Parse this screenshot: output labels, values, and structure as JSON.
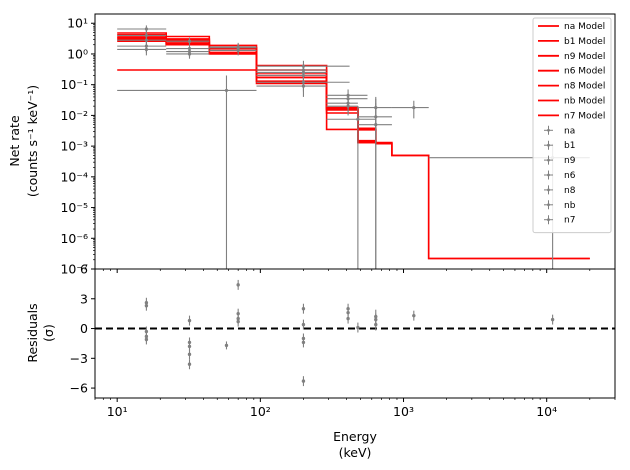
{
  "chart_data": [
    {
      "panel": "top",
      "type": "line",
      "xlabel": "Energy",
      "xlabel_unit": "(keV)",
      "ylabel": "Net rate",
      "ylabel_unit": "(counts s⁻¹ keV⁻¹)",
      "xscale": "log",
      "yscale": "log",
      "xlim": [
        7,
        30000
      ],
      "ylim": [
        1e-07,
        20
      ],
      "y_ticks": [
        {
          "value": 10,
          "label": "10¹"
        },
        {
          "value": 1,
          "label": "10⁰"
        },
        {
          "value": 0.1,
          "label": "10⁻¹"
        },
        {
          "value": 0.01,
          "label": "10⁻²"
        },
        {
          "value": 0.001,
          "label": "10⁻³"
        },
        {
          "value": 0.0001,
          "label": "10⁻⁴"
        },
        {
          "value": 1e-05,
          "label": "10⁻⁵"
        },
        {
          "value": 1e-06,
          "label": "10⁻⁶"
        },
        {
          "value": 1e-07,
          "label": "10⁻⁷"
        }
      ],
      "legend_position": "top-right",
      "model_color": "#ff0000",
      "data_color": "#808080",
      "models": [
        {
          "name": "na Model",
          "edges": [
            10,
            22,
            44,
            94,
            290,
            480,
            640,
            830,
            1500,
            20000
          ],
          "values": [
            3.6,
            2.8,
            1.6,
            0.42,
            0.018,
            0.0038,
            0.0012,
            0.0005,
            2.2e-07
          ]
        },
        {
          "name": "b1 Model",
          "edges": [
            10,
            22,
            44,
            94,
            290,
            480,
            640,
            830,
            1500,
            20000
          ],
          "values": [
            4.8,
            3.7,
            1.9,
            0.3,
            0.016,
            0.0035,
            0.0013,
            0.0005,
            2.2e-07
          ]
        },
        {
          "name": "n9 Model",
          "edges": [
            10,
            22,
            44,
            94,
            290,
            480,
            640,
            830
          ],
          "values": [
            4.2,
            3.1,
            1.5,
            0.24,
            0.015,
            0.0034,
            0.0012
          ]
        },
        {
          "name": "n6 Model",
          "edges": [
            10,
            22,
            44,
            94,
            290,
            480,
            640,
            830
          ],
          "values": [
            3.0,
            2.2,
            1.1,
            0.2,
            0.0035,
            0.0013,
            0.0012
          ]
        },
        {
          "name": "n8 Model",
          "edges": [
            10,
            22,
            44,
            94,
            290,
            480,
            640,
            830
          ],
          "values": [
            2.6,
            2.0,
            1.3,
            0.17,
            0.012,
            0.0015,
            0.0012
          ]
        },
        {
          "name": "nb Model",
          "edges": [
            10,
            22,
            44,
            94,
            290,
            480,
            640,
            830
          ],
          "values": [
            3.3,
            2.5,
            1.0,
            0.13,
            0.016,
            0.0014,
            0.0012
          ]
        },
        {
          "name": "n7 Model",
          "edges": [
            10,
            94,
            290,
            480,
            640,
            830
          ],
          "values": [
            0.3,
            0.11,
            0.017,
            0.0013,
            0.0012
          ]
        }
      ],
      "data_series": [
        {
          "name": "na",
          "points": [
            {
              "x": 16,
              "xerr": [
                10,
                22
              ],
              "y": 6.5,
              "yerr": [
                4.2,
                8.5
              ]
            },
            {
              "x": 32,
              "xerr": [
                22,
                44
              ],
              "y": 2.6,
              "yerr": [
                1.9,
                3.4
              ]
            },
            {
              "x": 70,
              "xerr": [
                44,
                94
              ],
              "y": 1.7,
              "yerr": [
                1.2,
                2.3
              ]
            },
            {
              "x": 200,
              "xerr": [
                94,
                420
              ],
              "y": 0.4,
              "yerr": [
                0.25,
                0.6
              ]
            },
            {
              "x": 410,
              "xerr": [
                290,
                560
              ],
              "y": 0.045,
              "yerr": [
                0.02,
                0.07
              ]
            },
            {
              "x": 1180,
              "xerr": [
                830,
                1500
              ],
              "y": 0.018,
              "yerr": [
                0.008,
                0.03
              ]
            },
            {
              "x": 11000,
              "xerr": [
                1500,
                20000
              ],
              "y": 0.00042,
              "yerr": [
                1e-07,
                0.0012
              ]
            }
          ]
        },
        {
          "name": "b1",
          "points": [
            {
              "x": 16,
              "xerr": [
                10,
                22
              ],
              "y": 2.8,
              "yerr": [
                1.4,
                4.5
              ]
            },
            {
              "x": 200,
              "xerr": [
                94,
                420
              ],
              "y": 0.12,
              "yerr": [
                0.06,
                0.2
              ]
            },
            {
              "x": 410,
              "xerr": [
                290,
                560
              ],
              "y": 0.035,
              "yerr": [
                0.02,
                0.05
              ]
            },
            {
              "x": 640,
              "xerr": [
                480,
                830
              ],
              "y": 0.018,
              "yerr": [
                0.002,
                0.04
              ]
            }
          ]
        },
        {
          "name": "n9",
          "points": [
            {
              "x": 16,
              "xerr": [
                10,
                22
              ],
              "y": 1.8,
              "yerr": [
                1.1,
                2.8
              ]
            },
            {
              "x": 32,
              "xerr": [
                22,
                44
              ],
              "y": 1.0,
              "yerr": [
                0.7,
                1.5
              ]
            },
            {
              "x": 70,
              "xerr": [
                44,
                94
              ],
              "y": 1.3,
              "yerr": [
                0.9,
                1.8
              ]
            },
            {
              "x": 200,
              "xerr": [
                94,
                290
              ],
              "y": 0.2,
              "yerr": [
                0.1,
                0.3
              ]
            },
            {
              "x": 410,
              "xerr": [
                290,
                480
              ],
              "y": 0.02,
              "yerr": [
                0.01,
                0.03
              ]
            }
          ]
        },
        {
          "name": "n6",
          "points": [
            {
              "x": 16,
              "xerr": [
                10,
                22
              ],
              "y": 1.4,
              "yerr": [
                0.9,
                2.0
              ]
            },
            {
              "x": 58,
              "xerr": [
                10,
                94
              ],
              "y": 0.065,
              "yerr": [
                1e-07,
                0.2
              ]
            },
            {
              "x": 200,
              "xerr": [
                94,
                290
              ],
              "y": 0.09,
              "yerr": [
                0.04,
                0.15
              ]
            },
            {
              "x": 410,
              "xerr": [
                290,
                480
              ],
              "y": 0.025,
              "yerr": [
                0.012,
                0.04
              ]
            }
          ]
        },
        {
          "name": "n8",
          "points": [
            {
              "x": 32,
              "xerr": [
                22,
                44
              ],
              "y": 1.2,
              "yerr": [
                0.8,
                1.6
              ]
            },
            {
              "x": 200,
              "xerr": [
                94,
                290
              ],
              "y": 0.25,
              "yerr": [
                0.15,
                0.35
              ]
            },
            {
              "x": 480,
              "xerr": [
                290,
                640
              ],
              "y": 0.0075,
              "yerr": [
                1e-07,
                0.02
              ]
            }
          ]
        },
        {
          "name": "nb",
          "points": [
            {
              "x": 16,
              "xerr": [
                10,
                22
              ],
              "y": 4.0,
              "yerr": [
                2.6,
                5.5
              ]
            },
            {
              "x": 70,
              "xerr": [
                44,
                94
              ],
              "y": 1.6,
              "yerr": [
                1.1,
                2.1
              ]
            },
            {
              "x": 640,
              "xerr": [
                480,
                830
              ],
              "y": 0.009,
              "yerr": [
                1e-07,
                0.025
              ]
            }
          ]
        },
        {
          "name": "n7",
          "points": [
            {
              "x": 32,
              "xerr": [
                22,
                44
              ],
              "y": 1.5,
              "yerr": [
                1.0,
                2.0
              ]
            },
            {
              "x": 200,
              "xerr": [
                94,
                290
              ],
              "y": 0.3,
              "yerr": [
                0.2,
                0.45
              ]
            },
            {
              "x": 640,
              "xerr": [
                480,
                830
              ],
              "y": 0.005,
              "yerr": [
                1e-07,
                0.035
              ]
            }
          ]
        }
      ]
    },
    {
      "panel": "bottom",
      "type": "scatter",
      "xlabel": "Energy",
      "xlabel_unit": "(keV)",
      "ylabel": "Residuals",
      "ylabel_unit": "(σ)",
      "xscale": "log",
      "xlim": [
        7,
        30000
      ],
      "ylim": [
        -7,
        6
      ],
      "x_ticks": [
        {
          "value": 10,
          "label": "10¹"
        },
        {
          "value": 100,
          "label": "10²"
        },
        {
          "value": 1000,
          "label": "10³"
        },
        {
          "value": 10000,
          "label": "10⁴"
        }
      ],
      "y_ticks": [
        {
          "value": 6,
          "label": "6"
        },
        {
          "value": 3,
          "label": "3"
        },
        {
          "value": 0,
          "label": "0"
        },
        {
          "value": -3,
          "label": "−3"
        },
        {
          "value": -6,
          "label": "−6"
        }
      ],
      "reference_line": 0,
      "points": [
        {
          "x": 16,
          "y": 2.6,
          "yerr": 0.5
        },
        {
          "x": 16,
          "y": 2.3,
          "yerr": 0.5
        },
        {
          "x": 16,
          "y": -0.3,
          "yerr": 0.5
        },
        {
          "x": 16,
          "y": -0.8,
          "yerr": 0.5
        },
        {
          "x": 16,
          "y": -1.1,
          "yerr": 0.5
        },
        {
          "x": 32,
          "y": 0.8,
          "yerr": 0.5
        },
        {
          "x": 32,
          "y": -1.4,
          "yerr": 0.5
        },
        {
          "x": 32,
          "y": -1.8,
          "yerr": 0.5
        },
        {
          "x": 32,
          "y": -2.6,
          "yerr": 0.5
        },
        {
          "x": 32,
          "y": -3.6,
          "yerr": 0.5
        },
        {
          "x": 58,
          "y": -1.7,
          "yerr": 0.4
        },
        {
          "x": 70,
          "y": 4.4,
          "yerr": 0.5
        },
        {
          "x": 70,
          "y": 1.5,
          "yerr": 0.5
        },
        {
          "x": 70,
          "y": 1.0,
          "yerr": 0.5
        },
        {
          "x": 70,
          "y": 0.7,
          "yerr": 0.5
        },
        {
          "x": 200,
          "y": 2.0,
          "yerr": 0.5
        },
        {
          "x": 200,
          "y": 0.4,
          "yerr": 0.5
        },
        {
          "x": 200,
          "y": -1.0,
          "yerr": 0.5
        },
        {
          "x": 200,
          "y": -1.4,
          "yerr": 0.5
        },
        {
          "x": 200,
          "y": -5.3,
          "yerr": 0.5
        },
        {
          "x": 410,
          "y": 2.0,
          "yerr": 0.5
        },
        {
          "x": 410,
          "y": 1.6,
          "yerr": 0.5
        },
        {
          "x": 410,
          "y": 1.0,
          "yerr": 0.5
        },
        {
          "x": 480,
          "y": 0.1,
          "yerr": 0.5
        },
        {
          "x": 640,
          "y": 0.4,
          "yerr": 0.6
        },
        {
          "x": 640,
          "y": 0.9,
          "yerr": 0.6
        },
        {
          "x": 640,
          "y": 1.2,
          "yerr": 0.7
        },
        {
          "x": 1180,
          "y": 1.3,
          "yerr": 0.5
        },
        {
          "x": 11000,
          "y": 0.9,
          "yerr": 0.5
        }
      ]
    }
  ]
}
